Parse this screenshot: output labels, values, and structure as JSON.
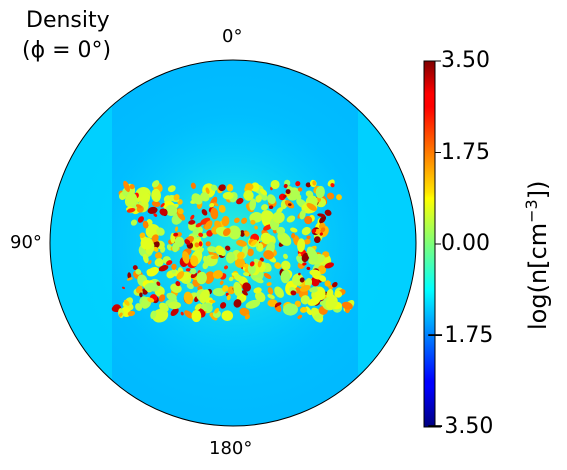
{
  "chart_data": {
    "type": "heatmap",
    "title_lines": [
      "Density",
      "(ϕ = 0°)"
    ],
    "projection": "polar-disk",
    "angle_labels": [
      {
        "angle_deg": 0,
        "text": "0°"
      },
      {
        "angle_deg": 90,
        "text": "90°"
      },
      {
        "angle_deg": 180,
        "text": "180°"
      }
    ],
    "colormap": "jet",
    "colorbar": {
      "label_prefix": "log(n[cm",
      "label_exponent": "−3",
      "label_suffix": "])",
      "vmin": -3.5,
      "vmax": 3.5,
      "ticks": [
        3.5,
        1.75,
        0.0,
        -1.75,
        -3.5
      ],
      "tick_labels": [
        "3.50",
        "1.75",
        "0.00",
        "−1.75",
        "−3.50"
      ]
    },
    "field": {
      "background_value": -1.2,
      "center_value": -0.55,
      "inner_band_value": -1.35,
      "clump_peak_value": 3.5,
      "clump_band_polar_deg": [
        68,
        112
      ]
    }
  },
  "colors": {
    "disk_edge": "#000000",
    "axis": "#000000"
  }
}
